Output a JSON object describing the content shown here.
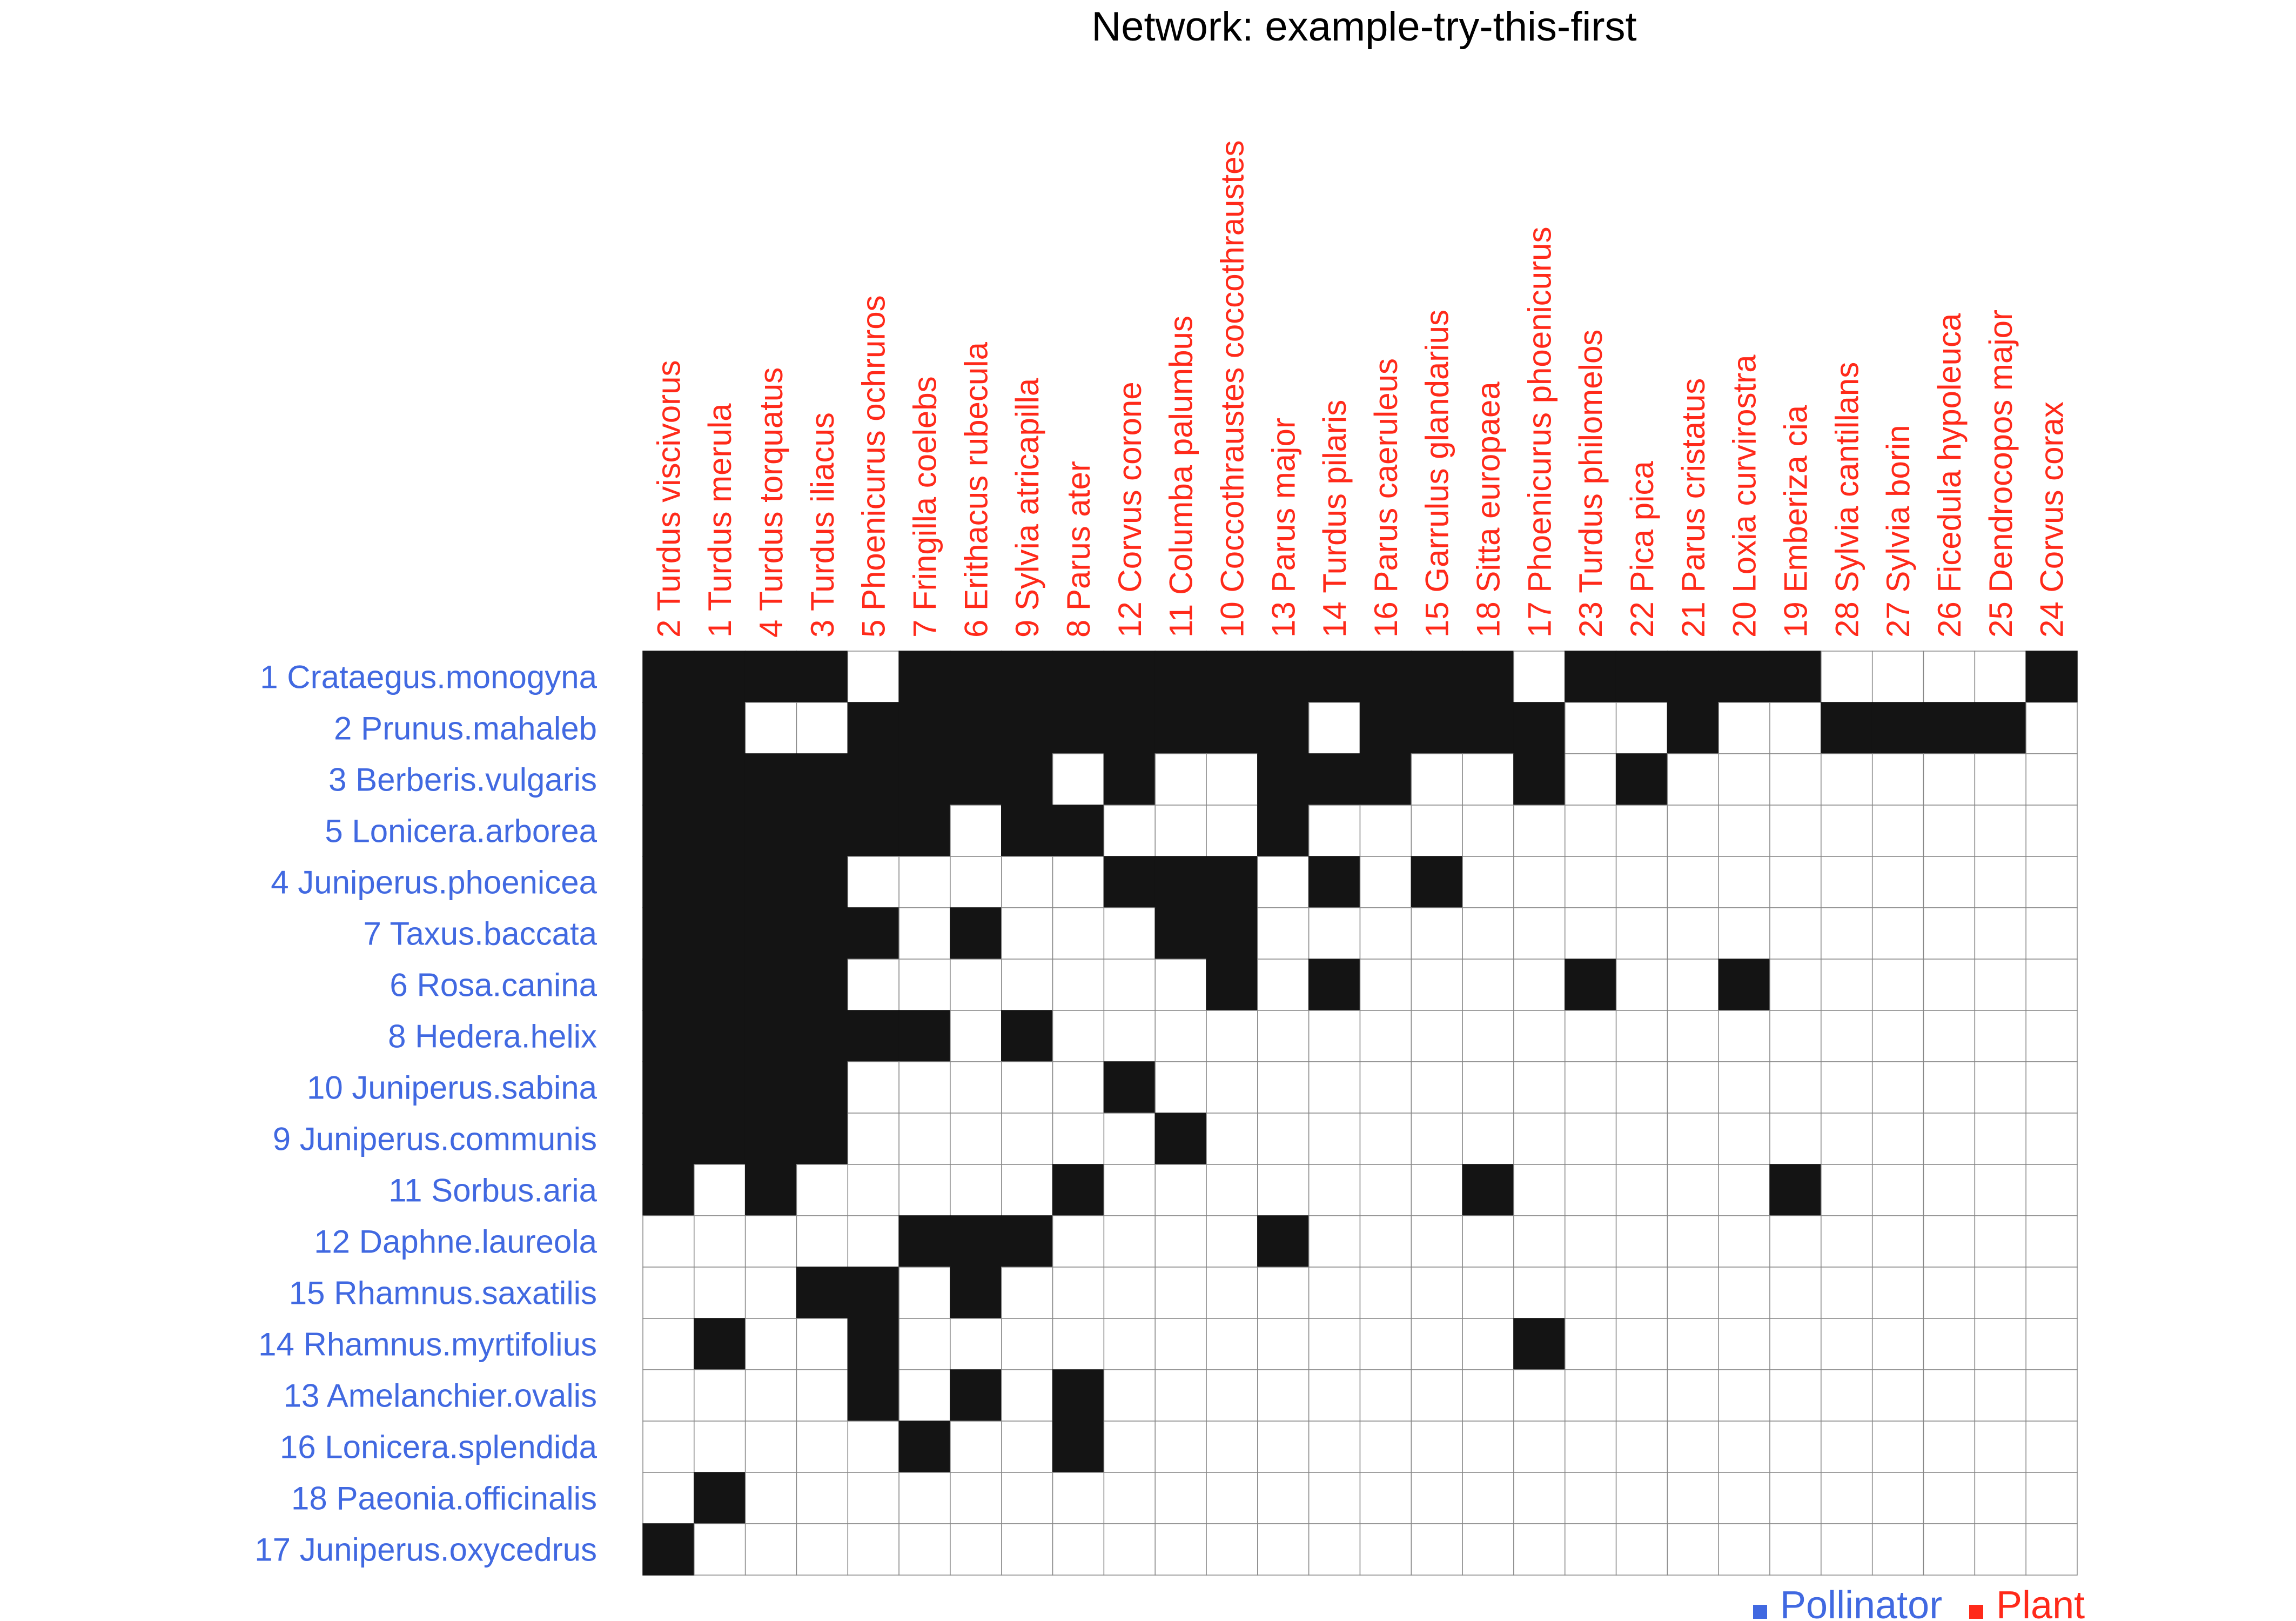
{
  "chart_data": {
    "type": "heatmap",
    "title": "Network: example-try-this-first",
    "columns": [
      "2 Turdus viscivorus",
      "1 Turdus merula",
      "4 Turdus torquatus",
      "3 Turdus iliacus",
      "5 Phoenicurus ochruros",
      "7 Fringilla coelebs",
      "6 Erithacus rubecula",
      "9 Sylvia atricapilla",
      "8 Parus ater",
      "12 Corvus corone",
      "11 Columba palumbus",
      "10 Coccothraustes coccothraustes",
      "13 Parus major",
      "14 Turdus pilaris",
      "16 Parus caeruleus",
      "15 Garrulus glandarius",
      "18 Sitta europaea",
      "17 Phoenicurus phoenicurus",
      "23 Turdus philomelos",
      "22 Pica pica",
      "21 Parus cristatus",
      "20 Loxia curvirostra",
      "19 Emberiza cia",
      "28 Sylvia cantillans",
      "27 Sylvia borin",
      "26 Ficedula hypoleuca",
      "25 Dendrocopos major",
      "24 Corvus corax"
    ],
    "rows": [
      "1 Crataegus.monogyna",
      "2 Prunus.mahaleb",
      "3 Berberis.vulgaris",
      "5 Lonicera.arborea",
      "4 Juniperus.phoenicea",
      "7 Taxus.baccata",
      "6 Rosa.canina",
      "8 Hedera.helix",
      "10 Juniperus.sabina",
      "9 Juniperus.communis",
      "11 Sorbus.aria",
      "12 Daphne.laureola",
      "15 Rhamnus.saxatilis",
      "14 Rhamnus.myrtifolius",
      "13 Amelanchier.ovalis",
      "16 Lonicera.splendida",
      "18 Paeonia.officinalis",
      "17 Juniperus.oxycedrus"
    ],
    "matrix": [
      [
        1,
        1,
        1,
        1,
        0,
        1,
        1,
        1,
        1,
        1,
        1,
        1,
        1,
        1,
        1,
        1,
        1,
        0,
        1,
        1,
        1,
        1,
        1,
        0,
        0,
        0,
        0,
        1
      ],
      [
        1,
        1,
        0,
        0,
        1,
        1,
        1,
        1,
        1,
        1,
        1,
        1,
        1,
        0,
        1,
        1,
        1,
        1,
        0,
        0,
        1,
        0,
        0,
        1,
        1,
        1,
        1,
        0
      ],
      [
        1,
        1,
        1,
        1,
        1,
        1,
        1,
        1,
        0,
        1,
        0,
        0,
        1,
        1,
        1,
        0,
        0,
        1,
        0,
        1,
        0,
        0,
        0,
        0,
        0,
        0,
        0,
        0
      ],
      [
        1,
        1,
        1,
        1,
        1,
        1,
        0,
        1,
        1,
        0,
        0,
        0,
        1,
        0,
        0,
        0,
        0,
        0,
        0,
        0,
        0,
        0,
        0,
        0,
        0,
        0,
        0,
        0
      ],
      [
        1,
        1,
        1,
        1,
        0,
        0,
        0,
        0,
        0,
        1,
        1,
        1,
        0,
        1,
        0,
        1,
        0,
        0,
        0,
        0,
        0,
        0,
        0,
        0,
        0,
        0,
        0,
        0
      ],
      [
        1,
        1,
        1,
        1,
        1,
        0,
        1,
        0,
        0,
        0,
        1,
        1,
        0,
        0,
        0,
        0,
        0,
        0,
        0,
        0,
        0,
        0,
        0,
        0,
        0,
        0,
        0,
        0
      ],
      [
        1,
        1,
        1,
        1,
        0,
        0,
        0,
        0,
        0,
        0,
        0,
        1,
        0,
        1,
        0,
        0,
        0,
        0,
        1,
        0,
        0,
        1,
        0,
        0,
        0,
        0,
        0,
        0
      ],
      [
        1,
        1,
        1,
        1,
        1,
        1,
        0,
        1,
        0,
        0,
        0,
        0,
        0,
        0,
        0,
        0,
        0,
        0,
        0,
        0,
        0,
        0,
        0,
        0,
        0,
        0,
        0,
        0
      ],
      [
        1,
        1,
        1,
        1,
        0,
        0,
        0,
        0,
        0,
        1,
        0,
        0,
        0,
        0,
        0,
        0,
        0,
        0,
        0,
        0,
        0,
        0,
        0,
        0,
        0,
        0,
        0,
        0
      ],
      [
        1,
        1,
        1,
        1,
        0,
        0,
        0,
        0,
        0,
        0,
        1,
        0,
        0,
        0,
        0,
        0,
        0,
        0,
        0,
        0,
        0,
        0,
        0,
        0,
        0,
        0,
        0,
        0
      ],
      [
        1,
        0,
        1,
        0,
        0,
        0,
        0,
        0,
        1,
        0,
        0,
        0,
        0,
        0,
        0,
        0,
        1,
        0,
        0,
        0,
        0,
        0,
        1,
        0,
        0,
        0,
        0,
        0
      ],
      [
        0,
        0,
        0,
        0,
        0,
        1,
        1,
        1,
        0,
        0,
        0,
        0,
        1,
        0,
        0,
        0,
        0,
        0,
        0,
        0,
        0,
        0,
        0,
        0,
        0,
        0,
        0,
        0
      ],
      [
        0,
        0,
        0,
        1,
        1,
        0,
        1,
        0,
        0,
        0,
        0,
        0,
        0,
        0,
        0,
        0,
        0,
        0,
        0,
        0,
        0,
        0,
        0,
        0,
        0,
        0,
        0,
        0
      ],
      [
        0,
        1,
        0,
        0,
        1,
        0,
        0,
        0,
        0,
        0,
        0,
        0,
        0,
        0,
        0,
        0,
        0,
        1,
        0,
        0,
        0,
        0,
        0,
        0,
        0,
        0,
        0,
        0
      ],
      [
        0,
        0,
        0,
        0,
        1,
        0,
        1,
        0,
        1,
        0,
        0,
        0,
        0,
        0,
        0,
        0,
        0,
        0,
        0,
        0,
        0,
        0,
        0,
        0,
        0,
        0,
        0,
        0
      ],
      [
        0,
        0,
        0,
        0,
        0,
        1,
        0,
        0,
        1,
        0,
        0,
        0,
        0,
        0,
        0,
        0,
        0,
        0,
        0,
        0,
        0,
        0,
        0,
        0,
        0,
        0,
        0,
        0
      ],
      [
        0,
        1,
        0,
        0,
        0,
        0,
        0,
        0,
        0,
        0,
        0,
        0,
        0,
        0,
        0,
        0,
        0,
        0,
        0,
        0,
        0,
        0,
        0,
        0,
        0,
        0,
        0,
        0
      ],
      [
        1,
        0,
        0,
        0,
        0,
        0,
        0,
        0,
        0,
        0,
        0,
        0,
        0,
        0,
        0,
        0,
        0,
        0,
        0,
        0,
        0,
        0,
        0,
        0,
        0,
        0,
        0,
        0
      ]
    ],
    "legend": {
      "position": "bottom-right",
      "items": [
        {
          "label": "Pollinator",
          "color": "#4169e1"
        },
        {
          "label": "Plant",
          "color": "#ff2a1a"
        }
      ]
    },
    "colors": {
      "filled": "#141414",
      "empty": "#ffffff",
      "grid": "#888888",
      "row_label": "#4169e1",
      "col_label": "#ff2a1a"
    },
    "grid": true
  }
}
